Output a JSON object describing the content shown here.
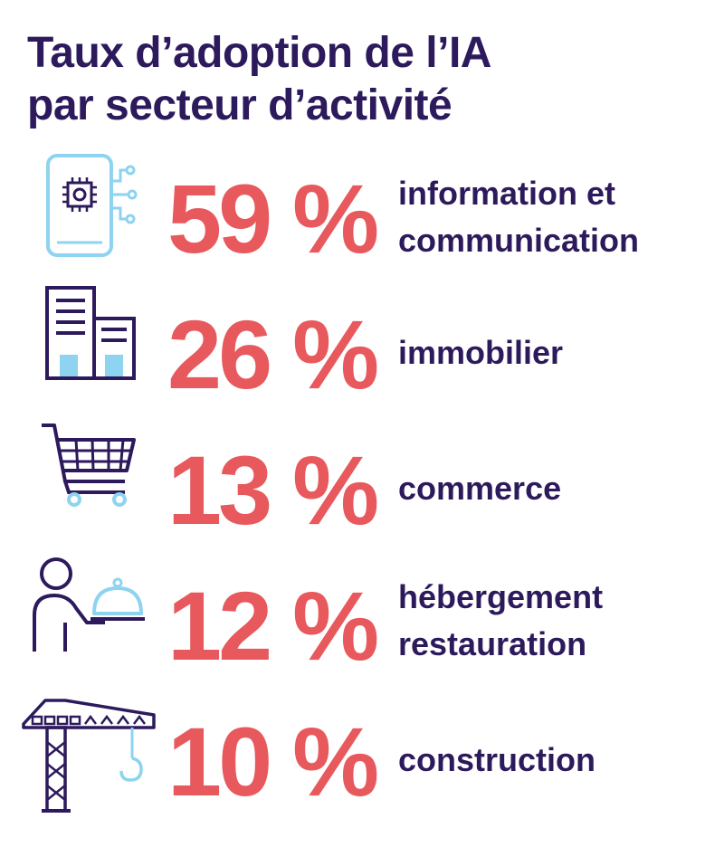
{
  "title": {
    "line1": "Taux d’adoption de l’IA",
    "line2": "par secteur d’activité"
  },
  "colors": {
    "title": "#2d1a5c",
    "value": "#e8595d",
    "icon_stroke": "#2d1a5c",
    "icon_accent": "#8ed3f0"
  },
  "chart_data": {
    "type": "table",
    "title": "Taux d’adoption de l’IA par secteur d’activité",
    "unit": "%",
    "rows": [
      {
        "value": 59,
        "value_label": "59 %",
        "label_lines": [
          "information et",
          "communication"
        ],
        "icon": "smartphone-chip-icon"
      },
      {
        "value": 26,
        "value_label": "26 %",
        "label_lines": [
          "immobilier"
        ],
        "icon": "buildings-icon"
      },
      {
        "value": 13,
        "value_label": "13 %",
        "label_lines": [
          "commerce"
        ],
        "icon": "shopping-cart-icon"
      },
      {
        "value": 12,
        "value_label": "12 %",
        "label_lines": [
          "hébergement",
          "restauration"
        ],
        "icon": "waiter-cloche-icon"
      },
      {
        "value": 10,
        "value_label": "10 %",
        "label_lines": [
          "construction"
        ],
        "icon": "tower-crane-icon"
      }
    ]
  }
}
